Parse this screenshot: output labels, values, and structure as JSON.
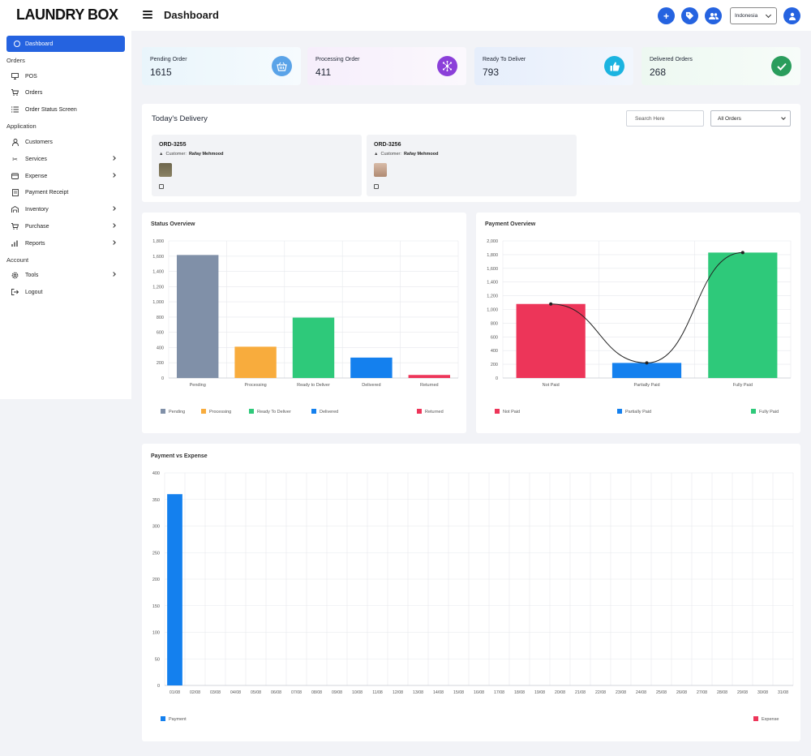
{
  "app": {
    "brand": "LAUNDRY BOX",
    "page_title": "Dashboard",
    "language": "Indonesia"
  },
  "top_icons": [
    "plus-icon",
    "tag-icon",
    "users-icon",
    "user-icon"
  ],
  "sidebar": {
    "active": "Dashboard",
    "sections": [
      {
        "label": "Orders",
        "items": [
          {
            "label": "POS",
            "icon": "monitor-icon",
            "submenu": false
          },
          {
            "label": "Orders",
            "icon": "cart-icon",
            "submenu": false
          },
          {
            "label": "Order Status Screen",
            "icon": "list-icon",
            "submenu": false
          }
        ]
      },
      {
        "label": "Application",
        "items": [
          {
            "label": "Customers",
            "icon": "person-icon",
            "submenu": false
          },
          {
            "label": "Services",
            "icon": "services-icon",
            "submenu": true
          },
          {
            "label": "Expense",
            "icon": "wallet-icon",
            "submenu": true
          },
          {
            "label": "Payment Receipt",
            "icon": "receipt-icon",
            "submenu": false
          },
          {
            "label": "Inventory",
            "icon": "warehouse-icon",
            "submenu": true
          },
          {
            "label": "Purchase",
            "icon": "cart-plus-icon",
            "submenu": true
          },
          {
            "label": "Reports",
            "icon": "bar-chart-icon",
            "submenu": true
          }
        ]
      },
      {
        "label": "Account",
        "items": [
          {
            "label": "Tools",
            "icon": "gear-icon",
            "submenu": true
          },
          {
            "label": "Logout",
            "icon": "logout-icon",
            "submenu": false
          }
        ]
      }
    ]
  },
  "stats": [
    {
      "label": "Pending Order",
      "value": "1615",
      "icon": "basket-icon",
      "color": "#5aa3e8",
      "bg": "#e9f5fb"
    },
    {
      "label": "Processing Order",
      "value": "411",
      "icon": "network-icon",
      "color": "#8b3fd9",
      "bg": "#f6eefb"
    },
    {
      "label": "Ready To Deliver",
      "value": "793",
      "icon": "thumbs-up-icon",
      "color": "#1bb3e0",
      "bg": "#e8f1fa"
    },
    {
      "label": "Delivered Orders",
      "value": "268",
      "icon": "check-icon",
      "color": "#2a9d5c",
      "bg": "#eef8f1"
    }
  ],
  "delivery": {
    "title": "Today's Delivery",
    "search_placeholder": "Search Here",
    "filter": "All Orders",
    "orders": [
      {
        "id": "ORD-3255",
        "customer_label": "Customer:",
        "customer": "Rafay Mehmood",
        "thumb_color": "#7d7458"
      },
      {
        "id": "ORD-3256",
        "customer_label": "Customer:",
        "customer": "Rafay Mehmood",
        "thumb_color": "#c9a893"
      }
    ]
  },
  "status_overview": {
    "title": "Status Overview",
    "chart_data": {
      "type": "bar",
      "categories": [
        "Pending",
        "Processing",
        "Ready to Deliver",
        "Delivered",
        "Returned"
      ],
      "values": [
        1615,
        411,
        793,
        268,
        40
      ],
      "colors": [
        "#8090a8",
        "#f8ac3d",
        "#2ec97a",
        "#1480ee",
        "#ed3559"
      ],
      "ylim": [
        0,
        1800
      ],
      "yticks": [
        0,
        200,
        400,
        600,
        800,
        1000,
        1200,
        1400,
        1600,
        1800
      ],
      "ytick_labels": [
        "0",
        "200",
        "400",
        "600",
        "800",
        "1,000",
        "1,200",
        "1,400",
        "1,600",
        "1,800"
      ],
      "legend": [
        "Pending",
        "Processing",
        "Ready To Deliver",
        "Delivered",
        "Returned"
      ],
      "legend_position": "bottom"
    }
  },
  "payment_overview": {
    "title": "Payment Overview",
    "chart_data": {
      "type": "bar",
      "categories": [
        "Not Paid",
        "Partially Paid",
        "Fully Paid"
      ],
      "values": [
        1080,
        220,
        1830
      ],
      "line_values": [
        1080,
        220,
        1830
      ],
      "colors": [
        "#ed3559",
        "#1480ee",
        "#2ec97a"
      ],
      "ylim": [
        0,
        2000
      ],
      "yticks": [
        0,
        200,
        400,
        600,
        800,
        1000,
        1200,
        1400,
        1600,
        1800,
        2000
      ],
      "ytick_labels": [
        "0",
        "200",
        "400",
        "600",
        "800",
        "1,000",
        "1,200",
        "1,400",
        "1,600",
        "1,800",
        "2,000"
      ],
      "legend": [
        "Not Paid",
        "Partially Paid",
        "Fully Paid"
      ],
      "legend_position": "bottom"
    }
  },
  "payment_vs_expense": {
    "title": "Payment vs Expense",
    "chart_data": {
      "type": "bar",
      "categories": [
        "01/08",
        "02/08",
        "03/08",
        "04/08",
        "05/08",
        "06/08",
        "07/08",
        "08/08",
        "09/08",
        "10/08",
        "11/08",
        "12/08",
        "13/08",
        "14/08",
        "15/08",
        "16/08",
        "17/08",
        "18/08",
        "19/08",
        "20/08",
        "21/08",
        "22/08",
        "23/08",
        "24/08",
        "25/08",
        "26/08",
        "27/08",
        "28/08",
        "29/08",
        "30/08",
        "31/08"
      ],
      "series": [
        {
          "name": "Payment",
          "color": "#1480ee",
          "values": [
            360,
            0,
            0,
            0,
            0,
            0,
            0,
            0,
            0,
            0,
            0,
            0,
            0,
            0,
            0,
            0,
            0,
            0,
            0,
            0,
            0,
            0,
            0,
            0,
            0,
            0,
            0,
            0,
            0,
            0,
            0
          ]
        },
        {
          "name": "Expense",
          "color": "#ed3559",
          "values": [
            0,
            0,
            0,
            0,
            0,
            0,
            0,
            0,
            0,
            0,
            0,
            0,
            0,
            0,
            0,
            0,
            0,
            0,
            0,
            0,
            0,
            0,
            0,
            0,
            0,
            0,
            0,
            0,
            0,
            0,
            0
          ]
        }
      ],
      "ylim": [
        0,
        400
      ],
      "yticks": [
        0,
        50,
        100,
        150,
        200,
        250,
        300,
        350,
        400
      ],
      "legend_position": "bottom"
    }
  }
}
